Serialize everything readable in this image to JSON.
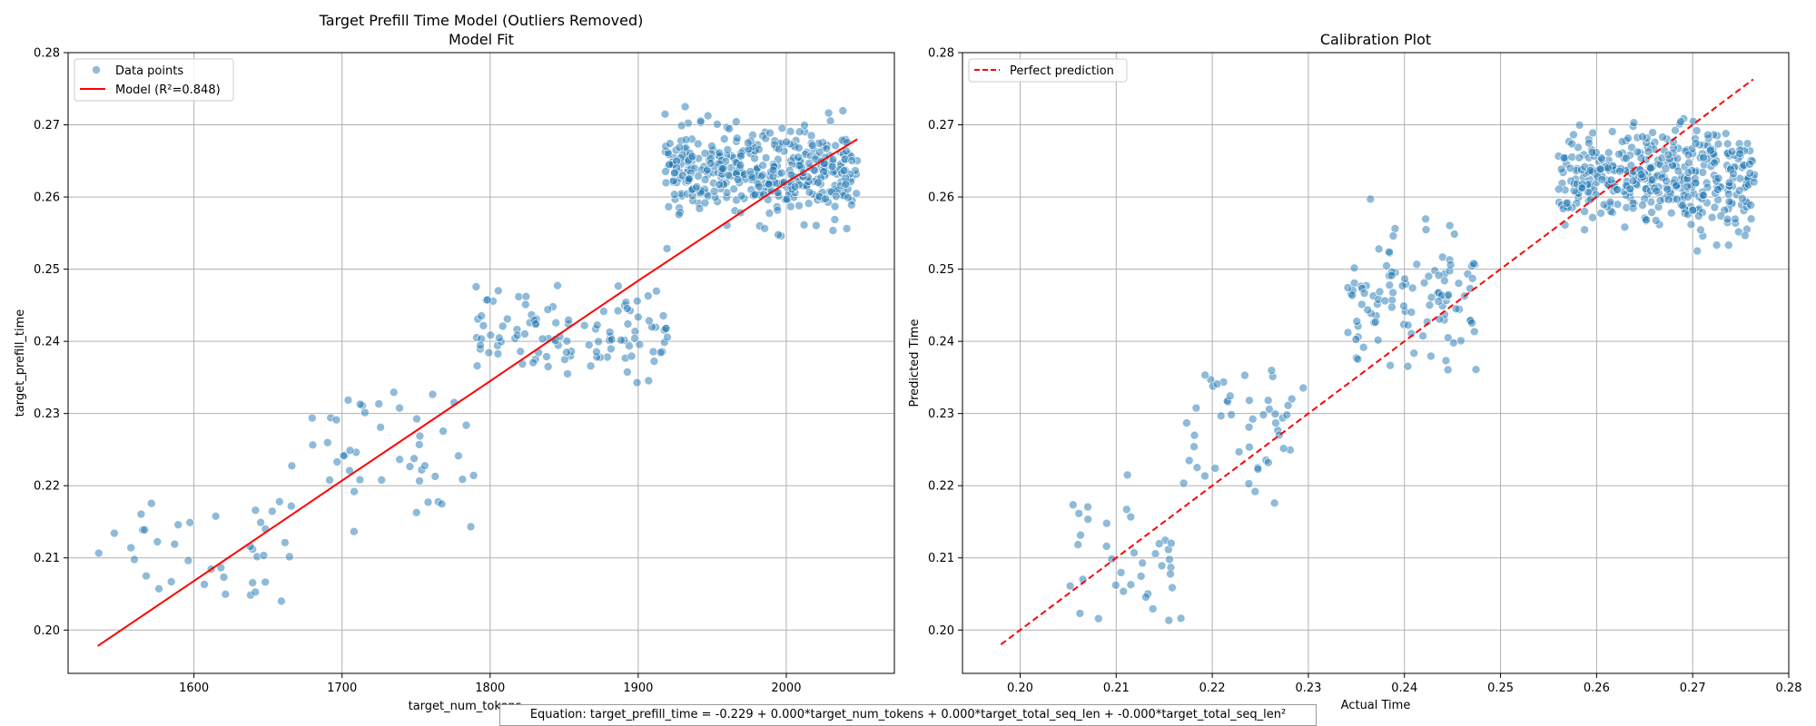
{
  "chart_data": [
    {
      "type": "scatter",
      "title": "Target Prefill Time Model (Outliers Removed)",
      "subtitle": "Model Fit",
      "xlabel": "target_num_tokens",
      "ylabel": "target_prefill_time",
      "xlim": [
        1515,
        2073
      ],
      "ylim": [
        0.194,
        0.28
      ],
      "xticks": [
        1600,
        1700,
        1800,
        1900,
        2000
      ],
      "yticks": [
        0.2,
        0.21,
        0.22,
        0.23,
        0.24,
        0.25,
        0.26,
        0.27,
        0.28
      ],
      "xtick_labels": [
        "1600",
        "1700",
        "1800",
        "1900",
        "2000"
      ],
      "ytick_labels": [
        "0.20",
        "0.21",
        "0.22",
        "0.23",
        "0.24",
        "0.25",
        "0.26",
        "0.27",
        "0.28"
      ],
      "grid": true,
      "legend_position": "top-left",
      "series": [
        {
          "name": "Data points",
          "type": "scatter",
          "color": "#1f77b4",
          "clusters": [
            {
              "x_range": [
                1535,
                1665
              ],
              "y_center": 0.212,
              "y_spread": 0.0045,
              "count": 38
            },
            {
              "x_range": [
                1665,
                1790
              ],
              "y_center": 0.2245,
              "y_spread": 0.0045,
              "count": 48
            },
            {
              "x_range": [
                1790,
                1920
              ],
              "y_center": 0.2412,
              "y_spread": 0.003,
              "count": 110
            },
            {
              "x_range": [
                1918,
                2048
              ],
              "y_center": 0.2633,
              "y_spread": 0.003,
              "count": 420
            }
          ]
        },
        {
          "name": "Model (R²=0.848)",
          "type": "line",
          "color": "#ff0000",
          "points": [
            [
              1535,
              0.1978
            ],
            [
              1600,
              0.2068
            ],
            [
              1700,
              0.2207
            ],
            [
              1800,
              0.2345
            ],
            [
              1900,
              0.2484
            ],
            [
              2000,
              0.262
            ],
            [
              2048,
              0.268
            ]
          ]
        }
      ]
    },
    {
      "type": "scatter",
      "title": "Calibration Plot",
      "xlabel": "Actual Time",
      "ylabel": "Predicted Time",
      "xlim": [
        0.194,
        0.28
      ],
      "ylim": [
        0.194,
        0.28
      ],
      "xticks": [
        0.2,
        0.21,
        0.22,
        0.23,
        0.24,
        0.25,
        0.26,
        0.27,
        0.28
      ],
      "yticks": [
        0.2,
        0.21,
        0.22,
        0.23,
        0.24,
        0.25,
        0.26,
        0.27,
        0.28
      ],
      "xtick_labels": [
        "0.20",
        "0.21",
        "0.22",
        "0.23",
        "0.24",
        "0.25",
        "0.26",
        "0.27",
        "0.28"
      ],
      "ytick_labels": [
        "0.20",
        "0.21",
        "0.22",
        "0.23",
        "0.24",
        "0.25",
        "0.26",
        "0.27",
        "0.28"
      ],
      "grid": true,
      "legend_position": "top-left",
      "series": [
        {
          "name": "",
          "type": "scatter",
          "color": "#1f77b4",
          "clusters": [
            {
              "x_range": [
                0.205,
                0.217
              ],
              "y_center": 0.209,
              "y_spread": 0.005,
              "count": 38
            },
            {
              "x_range": [
                0.217,
                0.2295
              ],
              "y_center": 0.2285,
              "y_spread": 0.0045,
              "count": 48
            },
            {
              "x_range": [
                0.234,
                0.2475
              ],
              "y_center": 0.2455,
              "y_spread": 0.0045,
              "count": 110
            },
            {
              "x_range": [
                0.256,
                0.2765
              ],
              "y_center": 0.2625,
              "y_spread": 0.0035,
              "count": 420
            }
          ]
        },
        {
          "name": "Perfect prediction",
          "type": "line",
          "style": "dashed",
          "color": "#ff0000",
          "points": [
            [
              0.198,
              0.198
            ],
            [
              0.2763,
              0.2763
            ]
          ]
        }
      ]
    }
  ],
  "footer": {
    "equation": "Equation: target_prefill_time = -0.229 + 0.000*target_num_tokens + 0.000*target_total_seq_len + -0.000*target_total_seq_len²"
  }
}
